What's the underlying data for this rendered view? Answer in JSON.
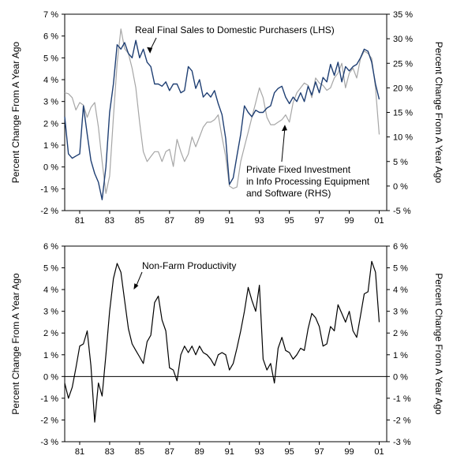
{
  "chart_data": [
    {
      "type": "line",
      "title": "",
      "ylabel_left": "Percent Change From A Year Ago",
      "ylabel_right": "Percent Change From A Year Ago",
      "xlim": [
        1980,
        2001.5
      ],
      "ylim_left": [
        -2,
        7
      ],
      "ylim_right": [
        -5,
        35
      ],
      "x_ticks": [
        1981,
        1983,
        1985,
        1987,
        1989,
        1991,
        1993,
        1995,
        1997,
        1999,
        2001
      ],
      "x_tick_labels": [
        "81",
        "83",
        "85",
        "87",
        "89",
        "91",
        "93",
        "95",
        "97",
        "99",
        "01"
      ],
      "y_ticks_left": [
        -2,
        -1,
        0,
        1,
        2,
        3,
        4,
        5,
        6,
        7
      ],
      "y_tick_labels_left": [
        "-2 %",
        "-1 %",
        "0 %",
        "1 %",
        "2 %",
        "3 %",
        "4 %",
        "5 %",
        "6 %",
        "7 %"
      ],
      "y_ticks_right": [
        -5,
        0,
        5,
        10,
        15,
        20,
        25,
        30,
        35
      ],
      "y_tick_labels_right": [
        "-5 %",
        "0 %",
        "5 %",
        "10 %",
        "15 %",
        "20 %",
        "25 %",
        "30 %",
        "35 %"
      ],
      "grid": false,
      "series": [
        {
          "name": "Real Final Sales to Domestic Purchasers (LHS)",
          "axis": "left",
          "color": "#1f3f73",
          "x": [
            1980.0,
            1980.25,
            1980.5,
            1980.75,
            1981.0,
            1981.25,
            1981.5,
            1981.75,
            1982.0,
            1982.25,
            1982.5,
            1982.75,
            1983.0,
            1983.25,
            1983.5,
            1983.75,
            1984.0,
            1984.25,
            1984.5,
            1984.75,
            1985.0,
            1985.25,
            1985.5,
            1985.75,
            1986.0,
            1986.25,
            1986.5,
            1986.75,
            1987.0,
            1987.25,
            1987.5,
            1987.75,
            1988.0,
            1988.25,
            1988.5,
            1988.75,
            1989.0,
            1989.25,
            1989.5,
            1989.75,
            1990.0,
            1990.25,
            1990.5,
            1990.75,
            1991.0,
            1991.25,
            1991.5,
            1991.75,
            1992.0,
            1992.25,
            1992.5,
            1992.75,
            1993.0,
            1993.25,
            1993.5,
            1993.75,
            1994.0,
            1994.25,
            1994.5,
            1994.75,
            1995.0,
            1995.25,
            1995.5,
            1995.75,
            1996.0,
            1996.25,
            1996.5,
            1996.75,
            1997.0,
            1997.25,
            1997.5,
            1997.75,
            1998.0,
            1998.25,
            1998.5,
            1998.75,
            1999.0,
            1999.25,
            1999.5,
            1999.75,
            2000.0,
            2000.25,
            2000.5,
            2000.75,
            2001.0
          ],
          "values": [
            2.3,
            0.6,
            0.4,
            0.5,
            0.6,
            2.8,
            1.5,
            0.3,
            -0.3,
            -0.7,
            -1.5,
            0.0,
            2.5,
            3.8,
            5.6,
            5.4,
            5.7,
            5.2,
            5.0,
            5.8,
            5.0,
            5.4,
            4.8,
            4.6,
            3.8,
            3.8,
            3.7,
            3.9,
            3.5,
            3.8,
            3.8,
            3.4,
            3.5,
            4.6,
            4.4,
            3.6,
            4.0,
            3.2,
            3.4,
            3.2,
            3.5,
            2.9,
            2.4,
            1.3,
            -0.8,
            -0.5,
            0.5,
            1.5,
            2.8,
            2.5,
            2.3,
            2.6,
            2.5,
            2.5,
            2.7,
            2.8,
            3.4,
            3.6,
            3.7,
            3.2,
            2.9,
            3.2,
            3.0,
            3.4,
            3.0,
            3.7,
            3.3,
            3.9,
            3.4,
            4.1,
            3.9,
            4.7,
            4.2,
            4.8,
            3.9,
            4.6,
            4.4,
            4.6,
            4.7,
            5.0,
            5.4,
            5.3,
            4.8,
            3.8,
            3.1
          ]
        },
        {
          "name": "Private Fixed Investment in Info Processing Equipment and Software (RHS)",
          "axis": "right",
          "color": "#a6a6a6",
          "x": [
            1980.0,
            1980.25,
            1980.5,
            1980.75,
            1981.0,
            1981.25,
            1981.5,
            1981.75,
            1982.0,
            1982.25,
            1982.5,
            1982.75,
            1983.0,
            1983.25,
            1983.5,
            1983.75,
            1984.0,
            1984.25,
            1984.5,
            1984.75,
            1985.0,
            1985.25,
            1985.5,
            1985.75,
            1986.0,
            1986.25,
            1986.5,
            1986.75,
            1987.0,
            1987.25,
            1987.5,
            1987.75,
            1988.0,
            1988.25,
            1988.5,
            1988.75,
            1989.0,
            1989.25,
            1989.5,
            1989.75,
            1990.0,
            1990.25,
            1990.5,
            1990.75,
            1991.0,
            1991.25,
            1991.5,
            1991.75,
            1992.0,
            1992.25,
            1992.5,
            1992.75,
            1993.0,
            1993.25,
            1993.5,
            1993.75,
            1994.0,
            1994.25,
            1994.5,
            1994.75,
            1995.0,
            1995.25,
            1995.5,
            1995.75,
            1996.0,
            1996.25,
            1996.5,
            1996.75,
            1997.0,
            1997.25,
            1997.5,
            1997.75,
            1998.0,
            1998.25,
            1998.5,
            1998.75,
            1999.0,
            1999.25,
            1999.5,
            1999.75,
            2000.0,
            2000.25,
            2000.5,
            2000.75,
            2001.0
          ],
          "values": [
            19.0,
            18.8,
            18.0,
            15.5,
            17.0,
            16.5,
            14.0,
            16.0,
            17.0,
            12.0,
            5.0,
            -1.5,
            2.0,
            14.0,
            25.0,
            32.0,
            28.0,
            27.0,
            24.0,
            20.0,
            13.0,
            7.0,
            5.0,
            6.0,
            7.0,
            7.0,
            5.0,
            7.0,
            7.5,
            4.0,
            9.5,
            7.0,
            5.0,
            6.5,
            10.0,
            8.0,
            10.0,
            12.0,
            13.0,
            13.0,
            13.5,
            14.5,
            10.0,
            6.0,
            0.0,
            -0.5,
            -0.2,
            5.0,
            8.0,
            11.0,
            14.0,
            17.0,
            20.0,
            18.0,
            14.0,
            12.5,
            12.5,
            13.0,
            13.5,
            14.5,
            13.0,
            17.0,
            19.0,
            20.0,
            21.0,
            20.5,
            18.0,
            22.0,
            21.0,
            20.5,
            19.5,
            20.0,
            22.0,
            23.0,
            25.0,
            20.0,
            23.0,
            24.0,
            22.0,
            26.0,
            27.5,
            27.0,
            26.0,
            20.0,
            10.5
          ]
        }
      ],
      "annotations": [
        {
          "text": "Real Final Sales to Domestic Purchasers (LHS)",
          "x": 1985.7,
          "y": 5.2,
          "axis": "left"
        },
        {
          "lines": [
            "Private Fixed Investment",
            "in Info Processing Equipment",
            "and Software (RHS)"
          ],
          "x": 1994.7,
          "y": 12.5,
          "axis": "right"
        }
      ]
    },
    {
      "type": "line",
      "title": "",
      "ylabel_left": "Percent Change From A Year Ago",
      "ylabel_right": "Percent Change From A Year Ago",
      "xlim": [
        1980,
        2001.5
      ],
      "ylim": [
        -3,
        6
      ],
      "x_ticks": [
        1981,
        1983,
        1985,
        1987,
        1989,
        1991,
        1993,
        1995,
        1997,
        1999,
        2001
      ],
      "x_tick_labels": [
        "81",
        "83",
        "85",
        "87",
        "89",
        "91",
        "93",
        "95",
        "97",
        "99",
        "01"
      ],
      "y_ticks": [
        -3,
        -2,
        -1,
        0,
        1,
        2,
        3,
        4,
        5,
        6
      ],
      "y_tick_labels": [
        "-3 %",
        "-2 %",
        "-1 %",
        "0 %",
        "1 %",
        "2 %",
        "3 %",
        "4 %",
        "5 %",
        "6 %"
      ],
      "grid": false,
      "zero_line": true,
      "series": [
        {
          "name": "Non-Farm Productivity",
          "color": "#000000",
          "x": [
            1980.0,
            1980.25,
            1980.5,
            1980.75,
            1981.0,
            1981.25,
            1981.5,
            1981.75,
            1982.0,
            1982.25,
            1982.5,
            1982.75,
            1983.0,
            1983.25,
            1983.5,
            1983.75,
            1984.0,
            1984.25,
            1984.5,
            1984.75,
            1985.0,
            1985.25,
            1985.5,
            1985.75,
            1986.0,
            1986.25,
            1986.5,
            1986.75,
            1987.0,
            1987.25,
            1987.5,
            1987.75,
            1988.0,
            1988.25,
            1988.5,
            1988.75,
            1989.0,
            1989.25,
            1989.5,
            1989.75,
            1990.0,
            1990.25,
            1990.5,
            1990.75,
            1991.0,
            1991.25,
            1991.5,
            1991.75,
            1992.0,
            1992.25,
            1992.5,
            1992.75,
            1993.0,
            1993.25,
            1993.5,
            1993.75,
            1994.0,
            1994.25,
            1994.5,
            1994.75,
            1995.0,
            1995.25,
            1995.5,
            1995.75,
            1996.0,
            1996.25,
            1996.5,
            1996.75,
            1997.0,
            1997.25,
            1997.5,
            1997.75,
            1998.0,
            1998.25,
            1998.5,
            1998.75,
            1999.0,
            1999.25,
            1999.5,
            1999.75,
            2000.0,
            2000.25,
            2000.5,
            2000.75,
            2001.0
          ],
          "values": [
            -0.3,
            -1.0,
            -0.5,
            0.4,
            1.4,
            1.5,
            2.1,
            0.5,
            -2.1,
            -0.3,
            -0.9,
            1.0,
            3.0,
            4.5,
            5.2,
            4.8,
            3.5,
            2.2,
            1.5,
            1.2,
            0.9,
            0.6,
            1.6,
            1.9,
            3.4,
            3.7,
            2.6,
            2.1,
            0.4,
            0.3,
            -0.2,
            1.0,
            1.4,
            1.1,
            1.4,
            1.0,
            1.4,
            1.1,
            1.0,
            0.8,
            0.5,
            1.0,
            1.1,
            1.0,
            0.3,
            0.6,
            1.3,
            2.1,
            3.0,
            4.1,
            3.5,
            3.0,
            4.2,
            0.8,
            0.3,
            0.6,
            -0.3,
            1.3,
            1.8,
            1.2,
            1.1,
            0.8,
            1.0,
            1.3,
            1.2,
            2.2,
            2.9,
            2.7,
            2.3,
            1.4,
            1.5,
            2.3,
            2.1,
            3.3,
            2.9,
            2.5,
            3.0,
            2.1,
            1.8,
            2.8,
            3.8,
            3.9,
            5.3,
            4.8,
            2.5
          ]
        }
      ],
      "annotations": [
        {
          "text": "Non-Farm Productivity",
          "x": 1984.5,
          "y": 4.0
        }
      ]
    }
  ]
}
